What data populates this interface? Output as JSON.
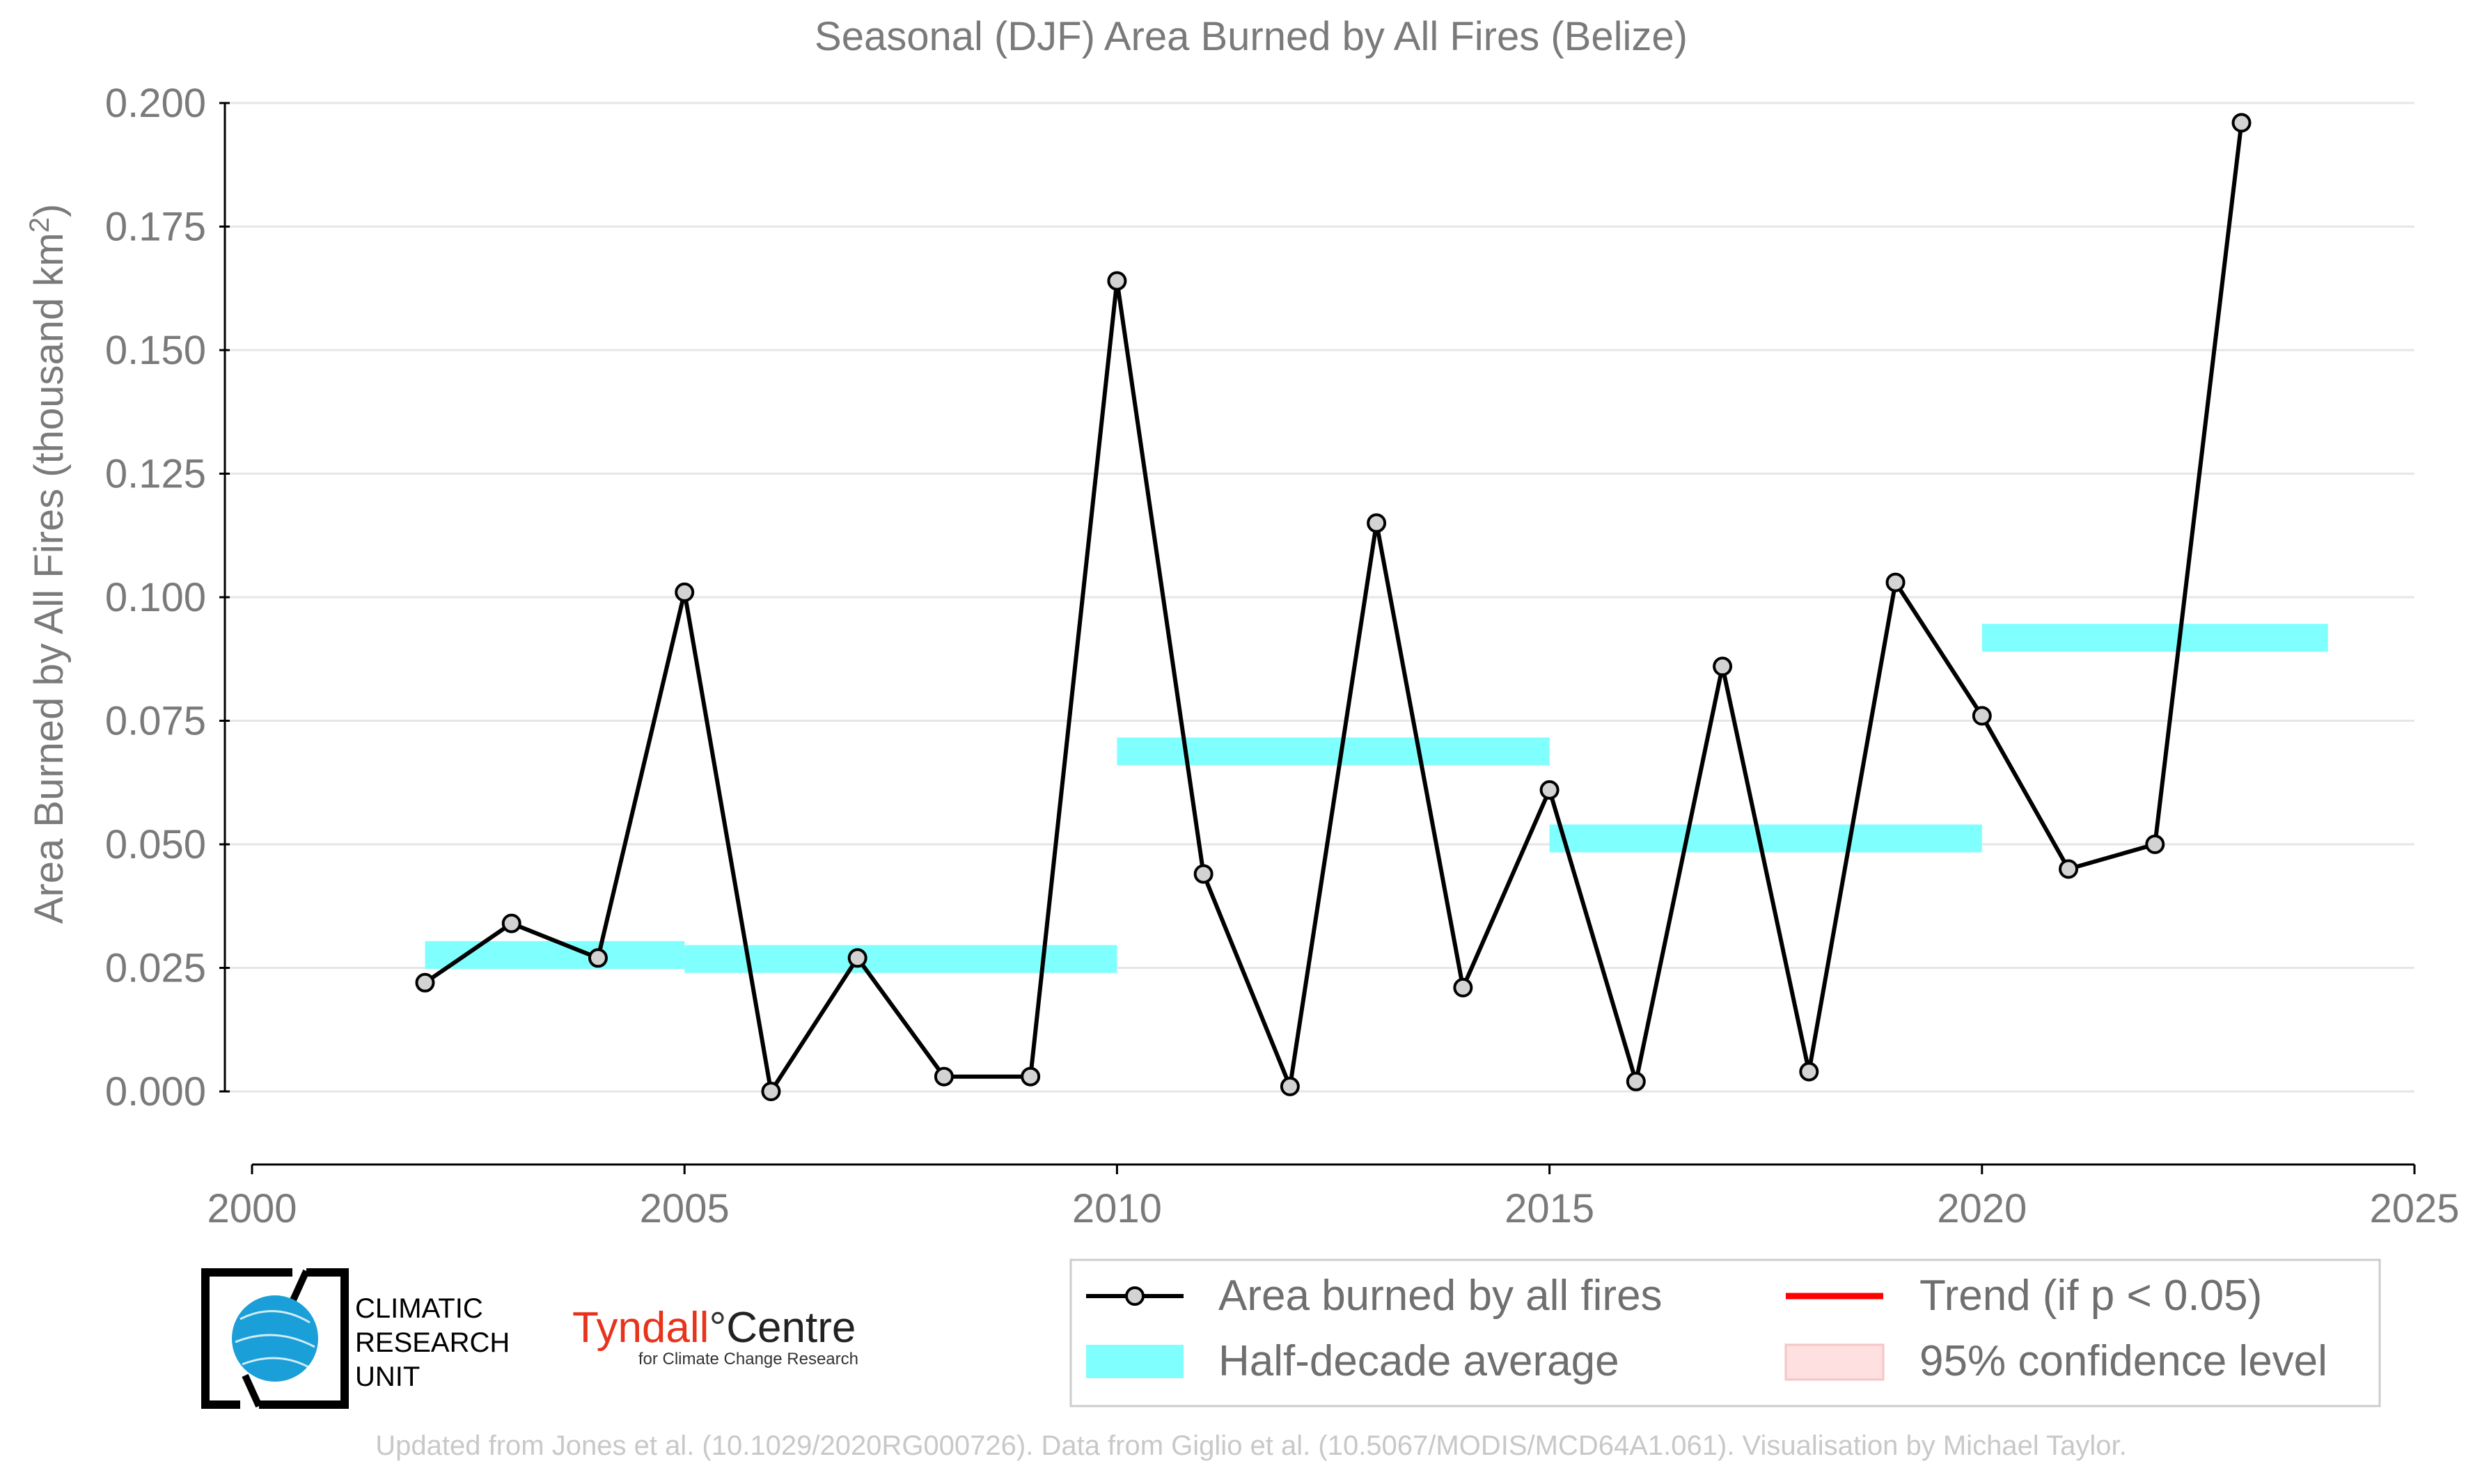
{
  "chart_data": {
    "type": "line",
    "title": "Seasonal (DJF) Area Burned by All Fires (Belize)",
    "xlabel": "",
    "ylabel": "Area Burned by All Fires (thousand km",
    "ylabel_sup": "2",
    "ylabel_close": ")",
    "xlim": [
      2000,
      2025
    ],
    "ylim": [
      -0.015,
      0.2
    ],
    "x_ticks": [
      2000,
      2005,
      2010,
      2015,
      2020,
      2025
    ],
    "y_ticks": [
      "0.000",
      "0.025",
      "0.050",
      "0.075",
      "0.100",
      "0.125",
      "0.150",
      "0.175",
      "0.200"
    ],
    "grid": "horizontal",
    "series": [
      {
        "name": "Area burned by all fires",
        "color": "#000000",
        "marker_fill": "#d3d3d3",
        "x": [
          2002,
          2003,
          2004,
          2005,
          2006,
          2007,
          2008,
          2009,
          2010,
          2011,
          2012,
          2013,
          2014,
          2015,
          2016,
          2017,
          2018,
          2019,
          2020,
          2021,
          2022,
          2023
        ],
        "y": [
          0.022,
          0.034,
          0.027,
          0.101,
          0.0,
          0.027,
          0.003,
          0.003,
          0.164,
          0.044,
          0.001,
          0.115,
          0.021,
          0.061,
          0.002,
          0.086,
          0.004,
          0.103,
          0.076,
          0.045,
          0.05,
          0.196
        ]
      }
    ],
    "half_decade_average": {
      "name": "Half-decade average",
      "color": "#80ffff",
      "segments": [
        {
          "x_start": 2002,
          "x_end": 2005,
          "y": 0.0276
        },
        {
          "x_start": 2005,
          "x_end": 2010,
          "y": 0.0268
        },
        {
          "x_start": 2010,
          "x_end": 2015,
          "y": 0.0688
        },
        {
          "x_start": 2015,
          "x_end": 2020,
          "y": 0.0512
        },
        {
          "x_start": 2020,
          "x_end": 2024,
          "y": 0.0918
        }
      ]
    },
    "legend": {
      "placement": "bottom-right",
      "entries": [
        {
          "label": "Area burned by all fires",
          "kind": "line-marker",
          "color": "#000000"
        },
        {
          "label": "Trend (if p < 0.05)",
          "kind": "line",
          "color": "#ff0000"
        },
        {
          "label": "Half-decade average",
          "kind": "band",
          "color": "#80ffff"
        },
        {
          "label": "95% confidence level",
          "kind": "band",
          "color": "#ffe0e0"
        }
      ]
    }
  },
  "logos": {
    "cru_lines": [
      "CLIMATIC",
      "RESEARCH",
      "UNIT"
    ],
    "tyndall_red": "Tyndall",
    "tyndall_degree": "°",
    "tyndall_black": "Centre",
    "tyndall_sub": "for Climate Change Research",
    "tyndall_color": "#e8331c"
  },
  "footer": "Updated from Jones et al. (10.1029/2020RG000726). Data from Giglio et al. (10.5067/MODIS/MCD64A1.061). Visualisation by Michael Taylor."
}
